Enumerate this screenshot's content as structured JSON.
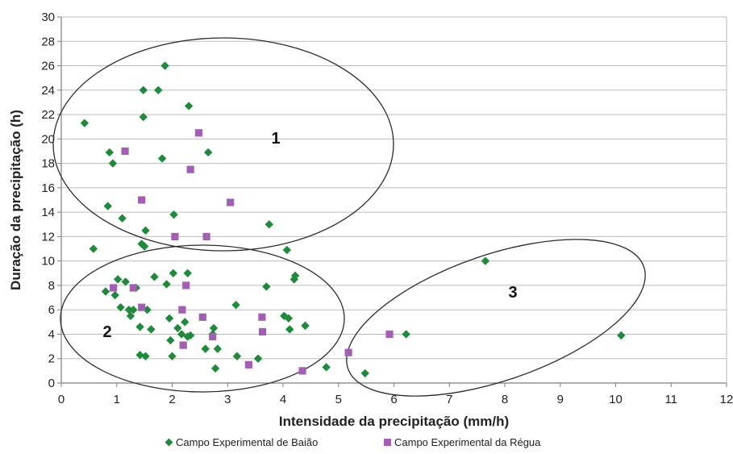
{
  "chart_data": {
    "type": "scatter",
    "title": "",
    "xlabel": "Intensidade da precipitação (mm/h)",
    "ylabel": "Duração da precipitação (h)",
    "xlim": [
      0,
      12
    ],
    "ylim": [
      0,
      30
    ],
    "x_ticks": [
      0,
      1,
      2,
      3,
      4,
      5,
      6,
      7,
      8,
      9,
      10,
      11,
      12
    ],
    "y_ticks": [
      0,
      2,
      4,
      6,
      8,
      10,
      12,
      14,
      16,
      18,
      20,
      22,
      24,
      26,
      28,
      30
    ],
    "grid": "horizontal",
    "legend_position": "bottom",
    "series": [
      {
        "name": "Campo Experimental de Baião",
        "color": "#1f8a3b",
        "marker": "diamond",
        "points": [
          {
            "x": 0.42,
            "y": 21.3
          },
          {
            "x": 0.58,
            "y": 11.0
          },
          {
            "x": 0.8,
            "y": 7.5
          },
          {
            "x": 0.84,
            "y": 14.5
          },
          {
            "x": 0.87,
            "y": 18.9
          },
          {
            "x": 0.93,
            "y": 18.0
          },
          {
            "x": 0.97,
            "y": 7.2
          },
          {
            "x": 1.02,
            "y": 8.5
          },
          {
            "x": 1.07,
            "y": 6.2
          },
          {
            "x": 1.1,
            "y": 13.5
          },
          {
            "x": 1.16,
            "y": 8.3
          },
          {
            "x": 1.22,
            "y": 6.0
          },
          {
            "x": 1.25,
            "y": 5.5
          },
          {
            "x": 1.3,
            "y": 6.0
          },
          {
            "x": 1.35,
            "y": 7.8
          },
          {
            "x": 1.42,
            "y": 4.6
          },
          {
            "x": 1.42,
            "y": 2.3
          },
          {
            "x": 1.45,
            "y": 11.4
          },
          {
            "x": 1.48,
            "y": 24.0
          },
          {
            "x": 1.5,
            "y": 11.2
          },
          {
            "x": 1.48,
            "y": 21.8
          },
          {
            "x": 1.52,
            "y": 12.5
          },
          {
            "x": 1.52,
            "y": 2.2
          },
          {
            "x": 1.55,
            "y": 6.0
          },
          {
            "x": 1.62,
            "y": 4.4
          },
          {
            "x": 1.68,
            "y": 8.7
          },
          {
            "x": 1.75,
            "y": 24.0
          },
          {
            "x": 1.82,
            "y": 18.4
          },
          {
            "x": 1.87,
            "y": 26.0
          },
          {
            "x": 1.9,
            "y": 8.1
          },
          {
            "x": 1.95,
            "y": 5.3
          },
          {
            "x": 1.97,
            "y": 3.5
          },
          {
            "x": 2.0,
            "y": 2.2
          },
          {
            "x": 2.02,
            "y": 9.0
          },
          {
            "x": 2.03,
            "y": 13.8
          },
          {
            "x": 2.1,
            "y": 4.5
          },
          {
            "x": 2.17,
            "y": 4.0
          },
          {
            "x": 2.23,
            "y": 5.0
          },
          {
            "x": 2.28,
            "y": 3.8
          },
          {
            "x": 2.28,
            "y": 9.0
          },
          {
            "x": 2.3,
            "y": 22.7
          },
          {
            "x": 2.33,
            "y": 3.9
          },
          {
            "x": 2.6,
            "y": 2.8
          },
          {
            "x": 2.65,
            "y": 18.9
          },
          {
            "x": 2.73,
            "y": 4.0
          },
          {
            "x": 2.75,
            "y": 4.5
          },
          {
            "x": 2.78,
            "y": 1.2
          },
          {
            "x": 2.82,
            "y": 2.8
          },
          {
            "x": 3.15,
            "y": 6.4
          },
          {
            "x": 3.17,
            "y": 2.2
          },
          {
            "x": 3.55,
            "y": 2.0
          },
          {
            "x": 3.7,
            "y": 7.9
          },
          {
            "x": 3.75,
            "y": 13.0
          },
          {
            "x": 4.02,
            "y": 5.5
          },
          {
            "x": 4.07,
            "y": 10.9
          },
          {
            "x": 4.1,
            "y": 5.3
          },
          {
            "x": 4.12,
            "y": 4.4
          },
          {
            "x": 4.2,
            "y": 8.5
          },
          {
            "x": 4.22,
            "y": 8.8
          },
          {
            "x": 4.4,
            "y": 4.7
          },
          {
            "x": 4.78,
            "y": 1.3
          },
          {
            "x": 5.48,
            "y": 0.8
          },
          {
            "x": 6.22,
            "y": 4.0
          },
          {
            "x": 7.65,
            "y": 10.0
          },
          {
            "x": 10.1,
            "y": 3.9
          }
        ]
      },
      {
        "name": "Campo Experimental da Régua",
        "color": "#a35fb4",
        "marker": "square",
        "points": [
          {
            "x": 0.94,
            "y": 7.8
          },
          {
            "x": 1.15,
            "y": 19.0
          },
          {
            "x": 1.3,
            "y": 7.8
          },
          {
            "x": 1.45,
            "y": 15.0
          },
          {
            "x": 1.45,
            "y": 6.2
          },
          {
            "x": 2.05,
            "y": 12.0
          },
          {
            "x": 2.18,
            "y": 6.0
          },
          {
            "x": 2.2,
            "y": 3.1
          },
          {
            "x": 2.25,
            "y": 8.0
          },
          {
            "x": 2.33,
            "y": 17.5
          },
          {
            "x": 2.48,
            "y": 20.5
          },
          {
            "x": 2.55,
            "y": 5.4
          },
          {
            "x": 2.62,
            "y": 12.0
          },
          {
            "x": 2.73,
            "y": 3.8
          },
          {
            "x": 3.05,
            "y": 14.8
          },
          {
            "x": 3.38,
            "y": 1.5
          },
          {
            "x": 3.62,
            "y": 5.4
          },
          {
            "x": 3.63,
            "y": 4.2
          },
          {
            "x": 4.35,
            "y": 1.0
          },
          {
            "x": 5.18,
            "y": 2.5
          },
          {
            "x": 5.92,
            "y": 4.0
          }
        ]
      }
    ],
    "annotations": [
      {
        "text": "1",
        "x": 3.9,
        "y": 20.0
      },
      {
        "text": "2",
        "x": 0.85,
        "y": 4.1
      },
      {
        "text": "3",
        "x": 8.15,
        "y": 7.2
      }
    ],
    "ellipses": [
      {
        "cx": 2.98,
        "cy": 17.6,
        "rx": 3.02,
        "ry": 11.7
      },
      {
        "cx": 2.3,
        "cy": 5.3,
        "rx": 2.55,
        "ry": 11.7,
        "ry_note": "see script"
      },
      {
        "cx": 7.0,
        "cy": 5.5,
        "rx": 2.92,
        "ry": 5.6
      }
    ]
  }
}
